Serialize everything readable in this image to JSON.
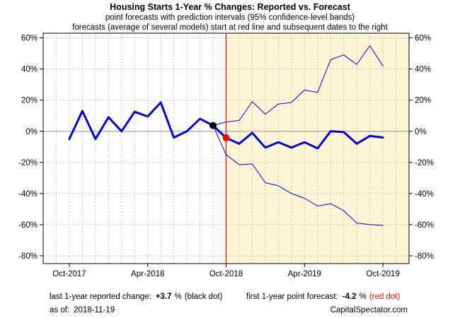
{
  "chart_data": {
    "type": "line",
    "title": "Housing Starts 1-Year % Changes: Reported vs. Forecast",
    "subtitle_1": "point forecasts with prediction intervals (95% confidence-level bands)",
    "subtitle_2": "forecasts (average of several models) start at red line and subsequent dates to the right",
    "xlabel": "",
    "ylabel": "",
    "ylim": [
      -85,
      63
    ],
    "yticks": [
      60,
      40,
      20,
      0,
      -20,
      -40,
      -60,
      -80
    ],
    "ytick_labels": [
      "60%",
      "40%",
      "20%",
      "0%",
      "-20%",
      "-40%",
      "-60%",
      "-80%"
    ],
    "xlim": [
      "2017-08",
      "2019-12"
    ],
    "xticks": [
      "2017-10",
      "2018-04",
      "2018-10",
      "2019-04",
      "2019-10"
    ],
    "xtick_labels": [
      "Oct-2017",
      "Apr-2018",
      "Oct-2018",
      "Apr-2019",
      "Oct-2019"
    ],
    "grid": true,
    "forecast_start": "2018-10",
    "forecast_start_color": "#ff0000",
    "forecast_shade_color": "#fdf5d6",
    "zero_line_color": "#aaaaaa",
    "series": [
      {
        "role": "reported",
        "color": "#0000cc",
        "x": [
          "2017-10",
          "2017-11",
          "2017-12",
          "2018-01",
          "2018-02",
          "2018-03",
          "2018-04",
          "2018-05",
          "2018-06",
          "2018-07",
          "2018-08",
          "2018-09",
          "2018-10"
        ],
        "values": [
          -5,
          13,
          -5,
          9,
          0,
          12.5,
          9.5,
          18.5,
          -4,
          0,
          8,
          3.7,
          -4.2
        ]
      },
      {
        "role": "forecast",
        "color": "#0000cc",
        "x": [
          "2018-10",
          "2018-11",
          "2018-12",
          "2019-01",
          "2019-02",
          "2019-03",
          "2019-04",
          "2019-05",
          "2019-06",
          "2019-07",
          "2019-08",
          "2019-09",
          "2019-10"
        ],
        "values": [
          -4.2,
          -8,
          -1,
          -10.5,
          -7,
          -10.5,
          -7,
          -11,
          0,
          -0.5,
          -8,
          -3,
          -4
        ]
      },
      {
        "role": "upper-band",
        "color": "#0000cc",
        "x": [
          "2018-09",
          "2018-10",
          "2018-11",
          "2018-12",
          "2019-01",
          "2019-02",
          "2019-03",
          "2019-04",
          "2019-05",
          "2019-06",
          "2019-07",
          "2019-08",
          "2019-09",
          "2019-10"
        ],
        "values": [
          3.7,
          6,
          7,
          19,
          11,
          17.5,
          18.5,
          26.5,
          25,
          46,
          49,
          43,
          55,
          42
        ]
      },
      {
        "role": "lower-band",
        "color": "#0000cc",
        "x": [
          "2018-09",
          "2018-10",
          "2018-11",
          "2018-12",
          "2019-01",
          "2019-02",
          "2019-03",
          "2019-04",
          "2019-05",
          "2019-06",
          "2019-07",
          "2019-08",
          "2019-09",
          "2019-10"
        ],
        "values": [
          3.7,
          -15,
          -21.5,
          -21,
          -33,
          -35,
          -40,
          -43,
          -48,
          -46.5,
          -51,
          -59,
          -60,
          -60.5
        ]
      }
    ],
    "markers": [
      {
        "x": "2018-09",
        "value": 3.7,
        "color": "#000000"
      },
      {
        "x": "2018-10",
        "value": -4.2,
        "color": "#ff0000"
      }
    ]
  },
  "footer": {
    "reported_label": "last 1-year reported change:",
    "reported_value": "+3.7",
    "reported_unit": "%",
    "reported_note": "(black dot)",
    "forecast_label": "first 1-year point forecast:",
    "forecast_value": "-4.2",
    "forecast_unit": "%",
    "forecast_note": "(red dot)",
    "asof_label": "as of:",
    "asof_value": "2018-11-19",
    "source": "CapitalSpectator.com"
  }
}
